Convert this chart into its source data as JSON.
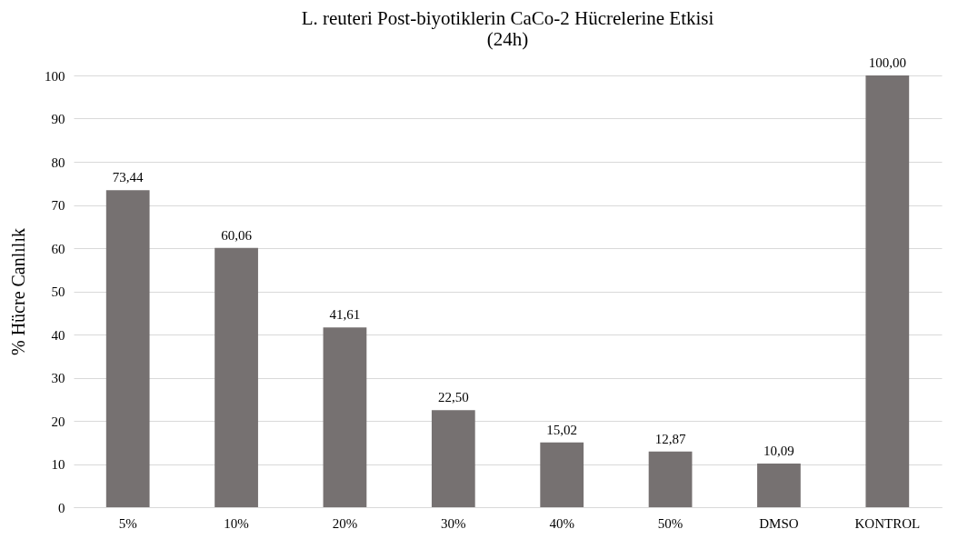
{
  "chart_data": {
    "type": "bar",
    "title": "L. reuteri Post-biyotiklerin CaCo-2  Hücrelerine Etkisi\n(24h)",
    "ylabel": "% Hücre Canlılık",
    "categories": [
      "5%",
      "10%",
      "20%",
      "30%",
      "40%",
      "50%",
      "DMSO",
      "KONTROL"
    ],
    "values": [
      73.44,
      60.06,
      41.61,
      22.5,
      15.02,
      12.87,
      10.09,
      100
    ],
    "value_labels": [
      "73,44",
      "60,06",
      "41,61",
      "22,50",
      "15,02",
      "12,87",
      "10,09",
      "100,00"
    ],
    "color": "#767171",
    "ylim": [
      0,
      100
    ],
    "yticks": [
      0,
      10,
      20,
      30,
      40,
      50,
      60,
      70,
      80,
      90,
      100
    ],
    "grid": "y"
  }
}
